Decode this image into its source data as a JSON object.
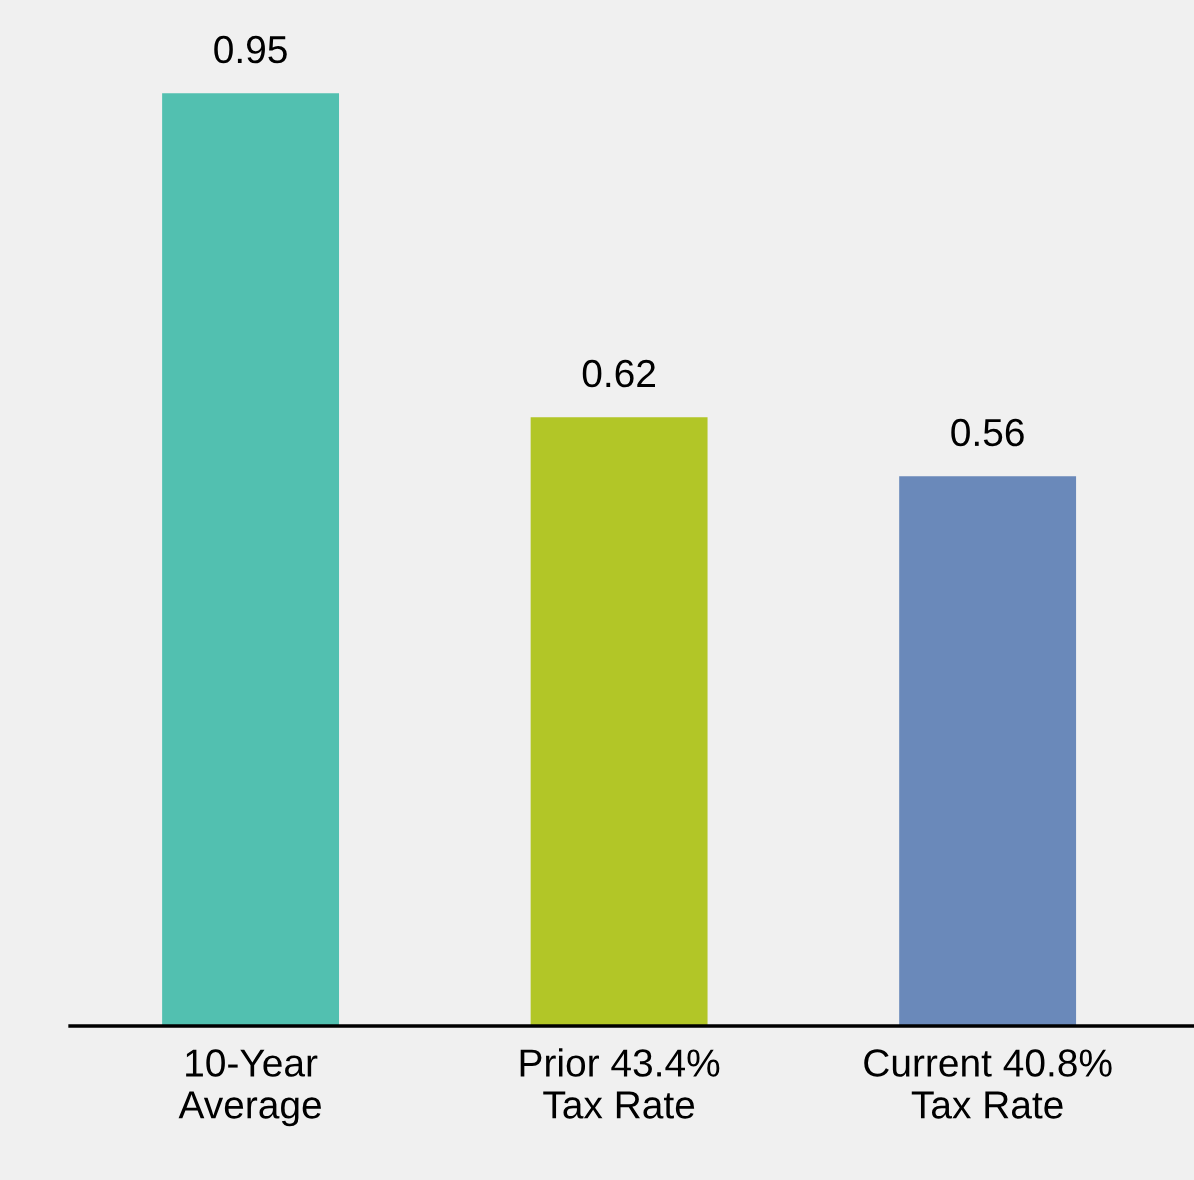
{
  "chart_data": {
    "type": "bar",
    "categories": [
      "10-Year\nAverage",
      "Prior 43.4%\nTax Rate",
      "Current 40.8%\nTax Rate"
    ],
    "values": [
      0.95,
      0.62,
      0.56
    ],
    "colors": [
      "#52c0b0",
      "#b2c627",
      "#6a89ba"
    ],
    "data_labels": true,
    "grid": false,
    "legend": false
  }
}
